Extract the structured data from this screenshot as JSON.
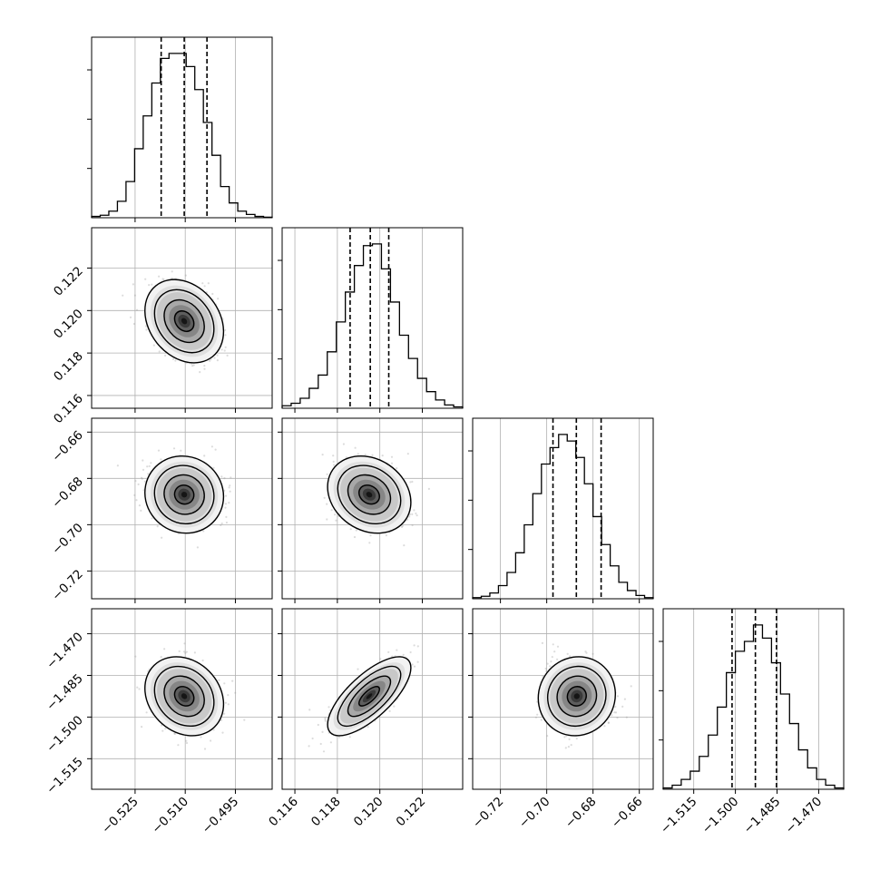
{
  "chart_data": {
    "type": "corner",
    "grid": true,
    "point_color": "#9a9a9a",
    "line_color": "#000000",
    "params": [
      {
        "range": [
          -0.538,
          -0.484
        ],
        "ticks": [
          "−0.525",
          "−0.510",
          "−0.495"
        ],
        "tick_values": [
          -0.525,
          -0.51,
          -0.495
        ],
        "mean": -0.5103,
        "sigma": 0.0048,
        "quantiles": [
          -0.5172,
          -0.5103,
          -0.5035
        ],
        "hist_counts": [
          0.8,
          1.5,
          4,
          10,
          22,
          42,
          62,
          82,
          97,
          100,
          100,
          92,
          78,
          58,
          38,
          19,
          9,
          4,
          2,
          0.8,
          0.3
        ]
      },
      {
        "range": [
          0.1154,
          0.1239
        ],
        "ticks": [
          "0.116",
          "0.118",
          "0.120",
          "0.122"
        ],
        "tick_values": [
          0.116,
          0.118,
          0.12,
          0.122
        ],
        "mean": 0.1195,
        "sigma": 0.0008,
        "quantiles": [
          0.1186,
          0.11955,
          0.12042
        ],
        "hist_counts": [
          1.5,
          3,
          6,
          12,
          20,
          34,
          52,
          70,
          86,
          98,
          99,
          84,
          64,
          44,
          30,
          18,
          10,
          5,
          2,
          0.8
        ]
      },
      {
        "range": [
          -0.732,
          -0.654
        ],
        "ticks": [
          "−0.72",
          "−0.70",
          "−0.68",
          "−0.66"
        ],
        "tick_values": [
          -0.72,
          -0.7,
          -0.68,
          -0.66
        ],
        "mean": -0.687,
        "sigma": 0.0068,
        "quantiles": [
          -0.6973,
          -0.6872,
          -0.6765
        ],
        "hist_counts": [
          0.7,
          1.5,
          3.5,
          8,
          16,
          28,
          45,
          64,
          82,
          92,
          100,
          96,
          86,
          70,
          50,
          33,
          20,
          10,
          5,
          2,
          0.7
        ]
      },
      {
        "range": [
          -1.526,
          -1.461
        ],
        "ticks": [
          "−1.515",
          "−1.500",
          "−1.485",
          "−1.470"
        ],
        "tick_values": [
          -1.515,
          -1.5,
          -1.485,
          -1.47
        ],
        "mean": -1.4925,
        "sigma": 0.0058,
        "quantiles": [
          -1.5012,
          -1.4928,
          -1.4852
        ],
        "hist_counts": [
          0.8,
          2.5,
          6,
          11,
          20,
          33,
          50,
          71,
          84,
          90,
          100,
          92,
          77,
          58,
          40,
          24,
          13,
          6,
          2.5,
          0.8
        ]
      }
    ],
    "correlations": [
      [
        1,
        -0.25,
        -0.05,
        -0.2
      ],
      [
        -0.25,
        1,
        -0.2,
        0.72
      ],
      [
        -0.05,
        -0.2,
        1,
        0.05
      ],
      [
        -0.2,
        0.72,
        0.05,
        1
      ]
    ]
  }
}
